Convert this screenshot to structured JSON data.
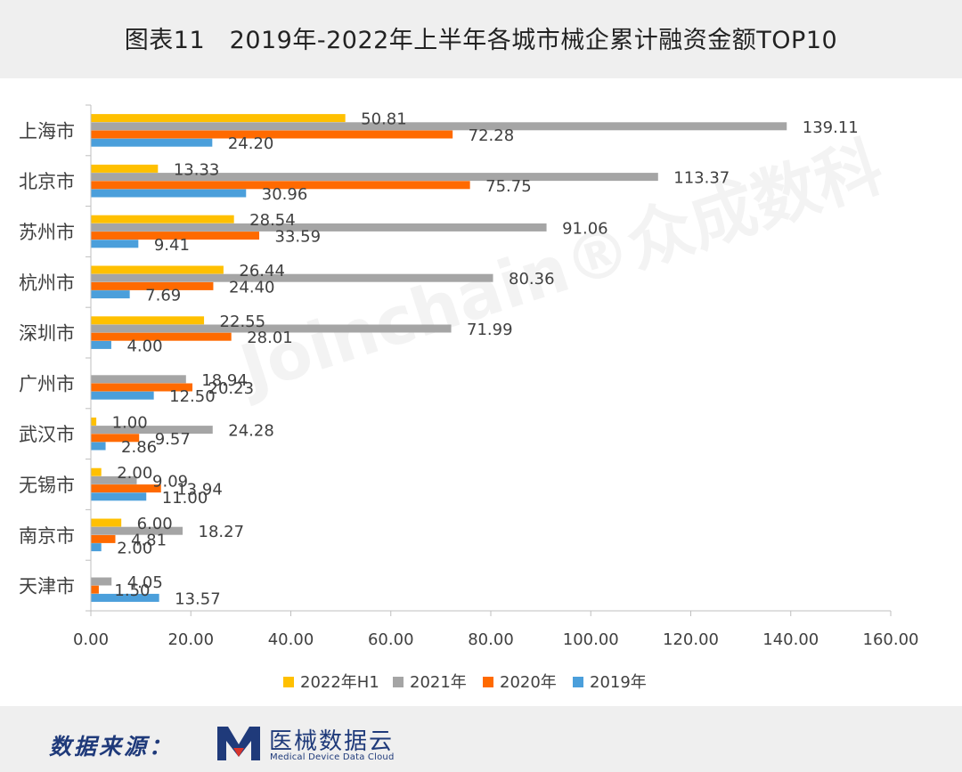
{
  "title": "图表11　2019年-2022年上半年各城市械企累计融资金额TOP10",
  "footer": {
    "label": "数据来源：",
    "brand": "医械数据云",
    "brand_en": "Medical Device Data Cloud"
  },
  "watermark": "Joinchain®众成数科",
  "chart_data": {
    "type": "bar",
    "orientation": "horizontal",
    "categories": [
      "上海市",
      "北京市",
      "苏州市",
      "杭州市",
      "深圳市",
      "广州市",
      "武汉市",
      "无锡市",
      "南京市",
      "天津市"
    ],
    "series": [
      {
        "name": "2022年H1",
        "color": "#FFC000",
        "values": [
          50.81,
          13.33,
          28.54,
          26.44,
          22.55,
          null,
          1.0,
          2.0,
          6.0,
          null
        ]
      },
      {
        "name": "2021年",
        "color": "#A5A5A5",
        "values": [
          139.11,
          113.37,
          91.06,
          80.36,
          71.99,
          18.94,
          24.28,
          9.09,
          18.27,
          4.05
        ]
      },
      {
        "name": "2020年",
        "color": "#FF6A00",
        "values": [
          72.28,
          75.75,
          33.59,
          24.4,
          28.01,
          20.23,
          9.57,
          13.94,
          4.81,
          1.5
        ]
      },
      {
        "name": "2019年",
        "color": "#4B9FDB",
        "values": [
          24.2,
          30.96,
          9.41,
          7.69,
          4.0,
          12.5,
          2.86,
          11.0,
          2.0,
          13.57
        ]
      }
    ],
    "xlim": [
      0,
      160
    ],
    "xticks": [
      "0.00",
      "20.00",
      "40.00",
      "60.00",
      "80.00",
      "100.00",
      "120.00",
      "140.00",
      "160.00"
    ],
    "legend_position": "bottom",
    "grid": false
  }
}
